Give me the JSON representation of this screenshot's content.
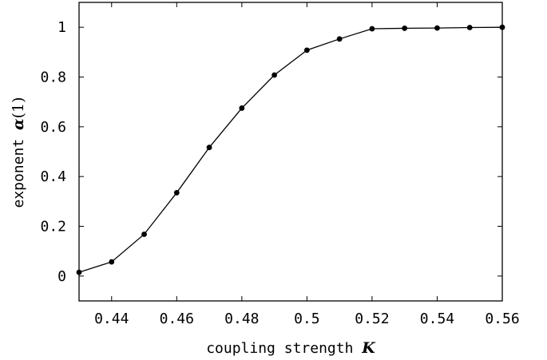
{
  "chart_data": {
    "type": "line",
    "x": [
      0.43,
      0.44,
      0.45,
      0.46,
      0.47,
      0.48,
      0.49,
      0.5,
      0.51,
      0.52,
      0.53,
      0.54,
      0.55,
      0.56
    ],
    "series": [
      {
        "values": [
          0.015,
          0.057,
          0.168,
          0.335,
          0.517,
          0.675,
          0.808,
          0.908,
          0.953,
          0.994,
          0.996,
          0.997,
          0.999,
          1.0
        ]
      }
    ],
    "xlim": [
      0.43,
      0.56
    ],
    "ylim": [
      -0.1,
      1.1
    ],
    "x_ticks": [
      0.44,
      0.46,
      0.48,
      0.5,
      0.52,
      0.54,
      0.56
    ],
    "x_tick_labels": [
      "0.44",
      "0.46",
      "0.48",
      "0.5",
      "0.52",
      "0.54",
      "0.56"
    ],
    "y_ticks": [
      0,
      0.2,
      0.4,
      0.6,
      0.8,
      1
    ],
    "y_tick_labels": [
      "0",
      "0.2",
      "0.4",
      "0.6",
      "0.8",
      "1"
    ],
    "xlabel_text": "coupling strength ",
    "xlabel_symbol": "K",
    "ylabel_text": "exponent ",
    "ylabel_symbol": "α",
    "ylabel_suffix": "(1)",
    "grid": false,
    "marker": "filled-circle",
    "line_color": "#000000",
    "marker_color": "#000000",
    "axis_color": "#000000"
  }
}
